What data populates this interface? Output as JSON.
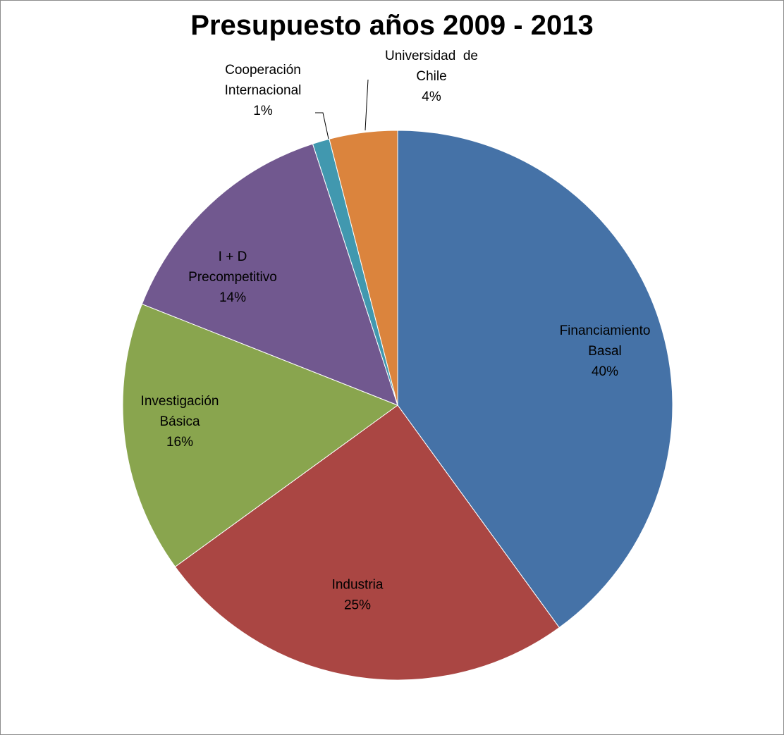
{
  "chart_data": {
    "type": "pie",
    "title": "Presupuesto años 2009 - 2013",
    "slices": [
      {
        "label_lines": [
          "Financiamiento",
          "Basal"
        ],
        "percent_label": "40%",
        "value": 40,
        "color": "#4572A7"
      },
      {
        "label_lines": [
          "Industria"
        ],
        "percent_label": "25%",
        "value": 25,
        "color": "#AA4643"
      },
      {
        "label_lines": [
          "Investigación",
          "Básica"
        ],
        "percent_label": "16%",
        "value": 16,
        "color": "#89A54E"
      },
      {
        "label_lines": [
          "I + D",
          "Precompetitivo"
        ],
        "percent_label": "14%",
        "value": 14,
        "color": "#71588F"
      },
      {
        "label_lines": [
          "Cooperación",
          "Internacional"
        ],
        "percent_label": "1%",
        "value": 1,
        "color": "#4198AF"
      },
      {
        "label_lines": [
          "Universidad  de",
          "Chile"
        ],
        "percent_label": "4%",
        "value": 4,
        "color": "#DB843D"
      }
    ],
    "start_angle": "12 o'clock",
    "direction": "clockwise",
    "legend": "none"
  }
}
